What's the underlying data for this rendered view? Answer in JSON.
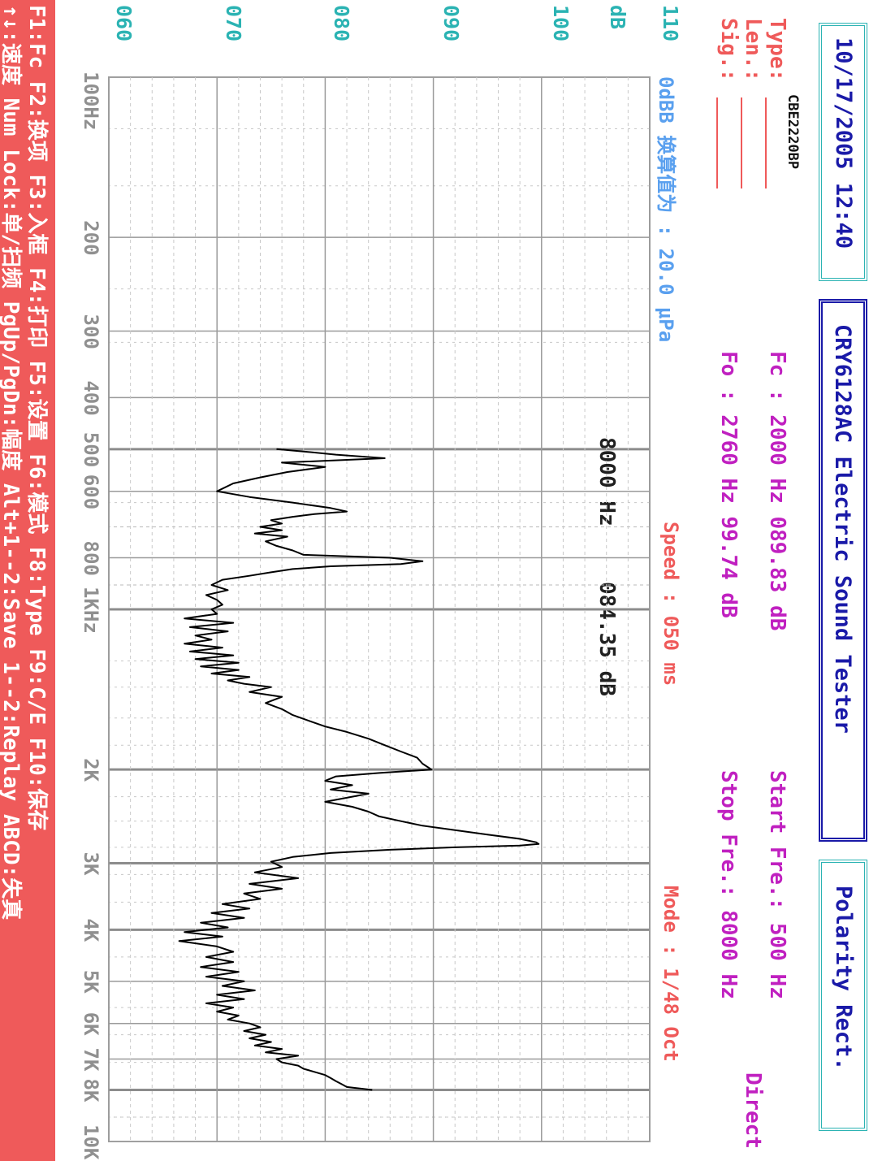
{
  "header": {
    "datetime": "10/17/2005 12:40",
    "app_title": "CRY6128AC  Electric Sound Tester",
    "polarity": "Polarity  Rect.",
    "direct": "Direct"
  },
  "params": {
    "type_label": "Type:",
    "type_value": "CBE2220BP",
    "len_label": "Len.:",
    "sig_label": "Sig.:",
    "fc_line": "Fc : 2000 Hz 089.83 dB",
    "fo_line": "Fo : 2760 Hz  99.74 dB",
    "start_freq": "Start Fre.:  500 Hz",
    "stop_freq": "Stop  Fre.: 8000 Hz"
  },
  "status": {
    "ref": "0dBB 换算值为 : 20.0 μPa",
    "speed": "Speed : 050 ms",
    "mode": "Mode : 1/48 Oct",
    "cursor_freq": "8000 Hz",
    "cursor_level": "084.35 dB"
  },
  "footer": {
    "line1": "F1:Fc  F2:换项  F3:入框  F4:打印  F5:设置  F6:模式  F8:Type  F9:C/E  F10:保存",
    "line2": "↑↓:速度  Num Lock:单/扫频  PgUp/PgDn:幅度  Alt+1--2:Save  1--2:Replay  ABCD:失真"
  },
  "colors": {
    "teal": "#2bb3b3",
    "navy": "#1a1aa8",
    "magenta": "#c020c0",
    "red": "#ef5a5a",
    "lightblue": "#5aa0ef",
    "curve": "#000000"
  },
  "chart_data": {
    "type": "line",
    "title": "",
    "xlabel": "",
    "ylabel": "dB",
    "x_scale": "log",
    "xlim": [
      100,
      10000
    ],
    "ylim": [
      60,
      110
    ],
    "x_ticks": [
      {
        "label": "100Hz",
        "value": 100
      },
      {
        "label": "200",
        "value": 200
      },
      {
        "label": "300",
        "value": 300
      },
      {
        "label": "400",
        "value": 400
      },
      {
        "label": "500",
        "value": 500
      },
      {
        "label": "600",
        "value": 600
      },
      {
        "label": "800",
        "value": 800
      },
      {
        "label": "1KHz",
        "value": 1000
      },
      {
        "label": "2K",
        "value": 2000
      },
      {
        "label": "3K",
        "value": 3000
      },
      {
        "label": "4K",
        "value": 4000
      },
      {
        "label": "5K",
        "value": 5000
      },
      {
        "label": "6K",
        "value": 6000
      },
      {
        "label": "7K",
        "value": 7000
      },
      {
        "label": "8K",
        "value": 8000
      },
      {
        "label": "10K",
        "value": 10000
      }
    ],
    "y_ticks": [
      {
        "label": "110",
        "value": 110
      },
      {
        "label": "dB",
        "value": 105
      },
      {
        "label": "100",
        "value": 100
      },
      {
        "label": "090",
        "value": 90
      },
      {
        "label": "080",
        "value": 80
      },
      {
        "label": "070",
        "value": 70
      },
      {
        "label": "060",
        "value": 60
      }
    ],
    "grid": true,
    "series": [
      {
        "x": [
          500,
          505,
          512,
          520,
          530,
          540,
          552,
          565,
          580,
          600,
          615,
          630,
          645,
          655,
          662,
          670,
          680,
          690,
          700,
          710,
          720,
          730,
          745,
          760,
          775,
          790,
          800,
          812,
          822,
          830,
          840,
          852,
          865,
          880,
          900,
          920,
          940,
          960,
          980,
          1000,
          1020,
          1040,
          1060,
          1080,
          1100,
          1120,
          1140,
          1160,
          1180,
          1200,
          1220,
          1240,
          1260,
          1280,
          1300,
          1320,
          1340,
          1360,
          1380,
          1400,
          1430,
          1460,
          1500,
          1540,
          1580,
          1620,
          1660,
          1700,
          1750,
          1800,
          1850,
          1900,
          1950,
          2000,
          2030,
          2060,
          2100,
          2140,
          2180,
          2220,
          2260,
          2300,
          2350,
          2400,
          2450,
          2500,
          2550,
          2600,
          2650,
          2700,
          2740,
          2760,
          2780,
          2800,
          2830,
          2870,
          2920,
          2980,
          3050,
          3120,
          3200,
          3280,
          3350,
          3420,
          3500,
          3580,
          3650,
          3720,
          3800,
          3880,
          3960,
          4040,
          4120,
          4200,
          4300,
          4400,
          4500,
          4600,
          4700,
          4800,
          4900,
          5000,
          5100,
          5200,
          5300,
          5400,
          5500,
          5600,
          5700,
          5800,
          5900,
          6000,
          6100,
          6200,
          6300,
          6400,
          6500,
          6600,
          6700,
          6800,
          6900,
          7000,
          7100,
          7200,
          7300,
          7400,
          7500,
          7600,
          7700,
          7800,
          7900,
          8000
        ],
        "y": [
          75.5,
          78.0,
          81.0,
          85.5,
          76.0,
          80.0,
          76.5,
          74.0,
          71.5,
          70.0,
          73.0,
          77.0,
          80.5,
          82.0,
          79.0,
          77.0,
          75.0,
          76.0,
          74.0,
          76.0,
          73.5,
          76.5,
          74.5,
          75.5,
          77.0,
          78.0,
          86.0,
          89.0,
          87.0,
          80.5,
          77.0,
          75.0,
          73.0,
          70.5,
          69.5,
          71.0,
          69.0,
          70.0,
          70.5,
          69.5,
          70.0,
          67.0,
          71.5,
          67.5,
          71.0,
          68.0,
          69.5,
          67.0,
          70.5,
          67.5,
          71.5,
          68.0,
          72.0,
          68.5,
          72.0,
          69.5,
          73.0,
          71.0,
          72.5,
          75.0,
          73.0,
          76.0,
          74.5,
          76.0,
          77.0,
          78.5,
          80.0,
          82.0,
          84.0,
          85.5,
          87.0,
          88.5,
          89.0,
          89.83,
          85.0,
          81.0,
          80.0,
          82.5,
          80.5,
          84.0,
          82.0,
          80.0,
          82.5,
          84.0,
          85.0,
          87.0,
          89.0,
          92.0,
          95.0,
          98.0,
          99.5,
          99.74,
          98.0,
          92.0,
          86.0,
          80.5,
          77.0,
          75.0,
          76.0,
          73.5,
          77.5,
          73.0,
          76.0,
          72.5,
          74.0,
          70.5,
          73.0,
          69.5,
          72.5,
          68.5,
          71.0,
          67.0,
          70.5,
          66.5,
          70.0,
          71.5,
          69.0,
          71.5,
          68.5,
          72.0,
          69.0,
          72.5,
          70.5,
          73.5,
          70.0,
          72.5,
          69.0,
          71.5,
          70.0,
          72.0,
          71.0,
          73.0,
          74.0,
          72.5,
          74.5,
          73.0,
          75.0,
          73.5,
          76.0,
          74.5,
          77.5,
          75.5,
          76.0,
          77.5,
          78.0,
          79.0,
          80.0,
          80.5,
          81.0,
          81.5,
          82.0,
          84.35
        ]
      }
    ]
  }
}
